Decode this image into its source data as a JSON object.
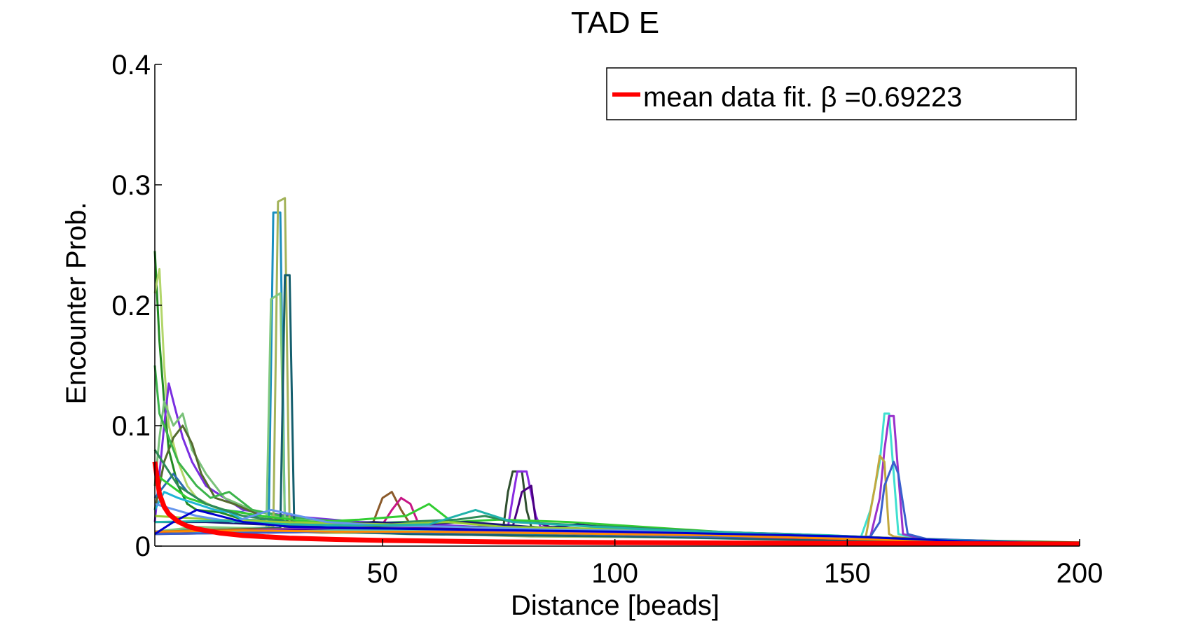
{
  "chart_data": {
    "type": "line",
    "title": "TAD E",
    "xlabel": "Distance [beads]",
    "ylabel": "Encounter Prob.",
    "xlim": [
      1,
      200
    ],
    "ylim": [
      0,
      0.4
    ],
    "xticks": [
      50,
      100,
      150,
      200
    ],
    "yticks": [
      0,
      0.1,
      0.2,
      0.3,
      0.4
    ],
    "xtick_labels": [
      "50",
      "100",
      "150",
      "200"
    ],
    "ytick_labels": [
      "0",
      "0.1",
      "0.2",
      "0.3",
      "0.4"
    ],
    "grid": false,
    "legend": {
      "placement": "top-right",
      "entries": [
        {
          "label": "mean data fit. β =0.69223",
          "color": "#ff0000"
        }
      ]
    },
    "fit": {
      "name": "mean data fit. β =0.69223",
      "color": "#ff0000",
      "beta": 0.69223,
      "x": [
        1,
        2,
        3,
        4,
        6,
        8,
        10,
        15,
        20,
        30,
        40,
        50,
        75,
        100,
        150,
        200
      ],
      "y": [
        0.07,
        0.0433,
        0.0327,
        0.0268,
        0.0203,
        0.0166,
        0.0143,
        0.0108,
        0.0088,
        0.0066,
        0.0055,
        0.0047,
        0.0035,
        0.0029,
        0.0022,
        0.0018
      ]
    },
    "series": [
      {
        "color": "#228b22",
        "x": [
          1,
          2,
          3,
          4,
          6,
          8,
          10,
          15,
          20,
          30,
          40,
          60,
          80,
          120,
          160,
          200
        ],
        "y": [
          0.245,
          0.17,
          0.12,
          0.08,
          0.05,
          0.035,
          0.03,
          0.028,
          0.022,
          0.02,
          0.018,
          0.015,
          0.012,
          0.01,
          0.006,
          0.003
        ]
      },
      {
        "color": "#b3d66b",
        "x": [
          1,
          2,
          3,
          4,
          6,
          8,
          10,
          15,
          20,
          30,
          40,
          60,
          80,
          120,
          160,
          200
        ],
        "y": [
          0.21,
          0.23,
          0.15,
          0.1,
          0.07,
          0.05,
          0.04,
          0.03,
          0.025,
          0.02,
          0.016,
          0.014,
          0.01,
          0.008,
          0.005,
          0.002
        ]
      },
      {
        "color": "#7a2ee0",
        "x": [
          1,
          2,
          3,
          4,
          5,
          7,
          9,
          12,
          16,
          20,
          30,
          45,
          60,
          90,
          130,
          170,
          200
        ],
        "y": [
          0.02,
          0.06,
          0.1,
          0.135,
          0.12,
          0.09,
          0.07,
          0.05,
          0.04,
          0.03,
          0.025,
          0.02,
          0.018,
          0.012,
          0.008,
          0.004,
          0.002
        ]
      },
      {
        "color": "#7ac27a",
        "x": [
          1,
          2,
          3,
          5,
          7,
          9,
          12,
          16,
          22,
          30,
          45,
          60,
          90,
          130,
          170,
          200
        ],
        "y": [
          0.05,
          0.09,
          0.12,
          0.1,
          0.11,
          0.08,
          0.06,
          0.04,
          0.03,
          0.022,
          0.018,
          0.015,
          0.011,
          0.007,
          0.004,
          0.002
        ]
      },
      {
        "color": "#556b2f",
        "x": [
          1,
          3,
          5,
          7,
          9,
          11,
          14,
          18,
          24,
          32,
          48,
          64,
          96,
          140,
          180,
          200
        ],
        "y": [
          0.03,
          0.07,
          0.09,
          0.1,
          0.085,
          0.06,
          0.04,
          0.035,
          0.025,
          0.02,
          0.017,
          0.013,
          0.01,
          0.006,
          0.003,
          0.002
        ]
      },
      {
        "color": "#3cb44b",
        "x": [
          1,
          2,
          4,
          6,
          8,
          10,
          13,
          17,
          22,
          30,
          42,
          58,
          85,
          125,
          165,
          200
        ],
        "y": [
          0.15,
          0.11,
          0.09,
          0.07,
          0.06,
          0.05,
          0.04,
          0.045,
          0.03,
          0.024,
          0.02,
          0.016,
          0.012,
          0.009,
          0.005,
          0.002
        ]
      },
      {
        "color": "#2b6cb0",
        "x": [
          1,
          3,
          5,
          8,
          12,
          16,
          20,
          26,
          34,
          44,
          60,
          80,
          110,
          145,
          175,
          200
        ],
        "y": [
          0.04,
          0.05,
          0.06,
          0.045,
          0.035,
          0.03,
          0.028,
          0.02,
          0.018,
          0.016,
          0.013,
          0.011,
          0.009,
          0.007,
          0.004,
          0.002
        ]
      },
      {
        "color": "#1fb5d6",
        "x": [
          1,
          3,
          6,
          10,
          14,
          17,
          20,
          25,
          32,
          42,
          58,
          76,
          105,
          140,
          172,
          200
        ],
        "y": [
          0.03,
          0.045,
          0.04,
          0.035,
          0.03,
          0.028,
          0.022,
          0.02,
          0.017,
          0.015,
          0.012,
          0.01,
          0.008,
          0.006,
          0.003,
          0.002
        ]
      },
      {
        "color": "#1a8fbf",
        "x": [
          1,
          10,
          20,
          25.5,
          26.5,
          28,
          29,
          31,
          36,
          45,
          60,
          80,
          120,
          160,
          200
        ],
        "y": [
          0.01,
          0.015,
          0.015,
          0.015,
          0.277,
          0.277,
          0.015,
          0.012,
          0.012,
          0.011,
          0.01,
          0.009,
          0.007,
          0.004,
          0.002
        ]
      },
      {
        "color": "#a3b35a",
        "x": [
          1,
          10,
          20,
          26.5,
          27.5,
          29,
          30,
          32,
          37,
          46,
          62,
          82,
          122,
          162,
          200
        ],
        "y": [
          0.01,
          0.014,
          0.014,
          0.016,
          0.286,
          0.289,
          0.015,
          0.012,
          0.011,
          0.011,
          0.01,
          0.008,
          0.007,
          0.004,
          0.002
        ]
      },
      {
        "color": "#7fc97f",
        "x": [
          1,
          10,
          20,
          25,
          26,
          28,
          29,
          33,
          40,
          55,
          75,
          100,
          140,
          180,
          200
        ],
        "y": [
          0.012,
          0.016,
          0.015,
          0.015,
          0.205,
          0.21,
          0.016,
          0.013,
          0.012,
          0.01,
          0.009,
          0.008,
          0.005,
          0.003,
          0.002
        ]
      },
      {
        "color": "#155f6e",
        "x": [
          1,
          10,
          20,
          28,
          29,
          30,
          31,
          34,
          41,
          56,
          76,
          102,
          142,
          182,
          200
        ],
        "y": [
          0.011,
          0.013,
          0.014,
          0.015,
          0.225,
          0.225,
          0.016,
          0.013,
          0.012,
          0.01,
          0.009,
          0.008,
          0.005,
          0.003,
          0.002
        ]
      },
      {
        "color": "#8b5a2b",
        "x": [
          1,
          20,
          40,
          48,
          50,
          52,
          54,
          56,
          62,
          70,
          90,
          120,
          160,
          200
        ],
        "y": [
          0.012,
          0.014,
          0.015,
          0.02,
          0.04,
          0.045,
          0.03,
          0.018,
          0.016,
          0.015,
          0.012,
          0.009,
          0.005,
          0.002
        ]
      },
      {
        "color": "#c71585",
        "x": [
          1,
          20,
          40,
          50,
          52,
          54,
          56,
          58,
          64,
          72,
          92,
          122,
          162,
          200
        ],
        "y": [
          0.011,
          0.013,
          0.014,
          0.018,
          0.03,
          0.04,
          0.035,
          0.016,
          0.015,
          0.014,
          0.011,
          0.008,
          0.005,
          0.002
        ]
      },
      {
        "color": "#2f4f2f",
        "x": [
          1,
          30,
          60,
          76,
          77,
          78,
          80,
          81,
          82,
          86,
          100,
          130,
          170,
          200
        ],
        "y": [
          0.01,
          0.014,
          0.016,
          0.016,
          0.045,
          0.062,
          0.062,
          0.03,
          0.016,
          0.015,
          0.012,
          0.008,
          0.004,
          0.002
        ]
      },
      {
        "color": "#8a2be2",
        "x": [
          1,
          30,
          60,
          77,
          78,
          79,
          81,
          83,
          84,
          88,
          102,
          132,
          172,
          200
        ],
        "y": [
          0.01,
          0.014,
          0.015,
          0.016,
          0.04,
          0.062,
          0.062,
          0.025,
          0.016,
          0.015,
          0.011,
          0.008,
          0.004,
          0.002
        ]
      },
      {
        "color": "#4b0082",
        "x": [
          1,
          30,
          62,
          78,
          79,
          80,
          82,
          83,
          86,
          95,
          110,
          140,
          175,
          200
        ],
        "y": [
          0.01,
          0.013,
          0.015,
          0.016,
          0.03,
          0.045,
          0.05,
          0.02,
          0.016,
          0.014,
          0.011,
          0.007,
          0.004,
          0.002
        ]
      },
      {
        "color": "#40e0d0",
        "x": [
          1,
          40,
          80,
          120,
          150,
          153,
          155,
          157,
          158,
          159,
          161,
          165,
          180,
          200
        ],
        "y": [
          0.01,
          0.013,
          0.012,
          0.009,
          0.007,
          0.008,
          0.03,
          0.07,
          0.11,
          0.11,
          0.01,
          0.006,
          0.004,
          0.002
        ]
      },
      {
        "color": "#9932cc",
        "x": [
          1,
          40,
          80,
          120,
          152,
          155,
          157,
          158,
          159,
          160,
          162,
          166,
          182,
          200
        ],
        "y": [
          0.01,
          0.012,
          0.012,
          0.009,
          0.007,
          0.008,
          0.04,
          0.08,
          0.108,
          0.108,
          0.01,
          0.006,
          0.004,
          0.002
        ]
      },
      {
        "color": "#c2a83e",
        "x": [
          1,
          40,
          80,
          120,
          151,
          154,
          156,
          157,
          158,
          159,
          160,
          164,
          180,
          200
        ],
        "y": [
          0.01,
          0.012,
          0.011,
          0.008,
          0.007,
          0.008,
          0.05,
          0.075,
          0.07,
          0.01,
          0.008,
          0.006,
          0.004,
          0.002
        ]
      },
      {
        "color": "#3a5fcd",
        "x": [
          1,
          40,
          80,
          120,
          152,
          155,
          157,
          158,
          160,
          161,
          163,
          167,
          183,
          200
        ],
        "y": [
          0.01,
          0.012,
          0.011,
          0.008,
          0.007,
          0.008,
          0.02,
          0.05,
          0.07,
          0.06,
          0.01,
          0.006,
          0.004,
          0.002
        ]
      },
      {
        "color": "#32cd32",
        "x": [
          1,
          8,
          16,
          24,
          35,
          45,
          55,
          60,
          65,
          75,
          90,
          110,
          130,
          150,
          175,
          200
        ],
        "y": [
          0.06,
          0.04,
          0.03,
          0.025,
          0.02,
          0.022,
          0.025,
          0.035,
          0.02,
          0.022,
          0.02,
          0.015,
          0.01,
          0.008,
          0.004,
          0.002
        ]
      },
      {
        "color": "#2e8b57",
        "x": [
          1,
          6,
          12,
          20,
          30,
          42,
          54,
          66,
          72,
          78,
          95,
          115,
          135,
          160,
          185,
          200
        ],
        "y": [
          0.08,
          0.05,
          0.035,
          0.025,
          0.02,
          0.018,
          0.02,
          0.022,
          0.025,
          0.02,
          0.017,
          0.013,
          0.01,
          0.006,
          0.003,
          0.002
        ]
      },
      {
        "color": "#191970",
        "x": [
          1,
          12,
          24,
          36,
          48,
          58,
          68,
          85,
          92,
          100,
          118,
          138,
          158,
          178,
          200
        ],
        "y": [
          0.02,
          0.02,
          0.018,
          0.017,
          0.02,
          0.018,
          0.02,
          0.015,
          0.018,
          0.014,
          0.012,
          0.01,
          0.007,
          0.004,
          0.002
        ]
      },
      {
        "color": "#9acd32",
        "x": [
          1,
          14,
          28,
          40,
          52,
          64,
          76,
          88,
          104,
          120,
          136,
          152,
          168,
          184,
          200
        ],
        "y": [
          0.025,
          0.022,
          0.02,
          0.019,
          0.018,
          0.02,
          0.016,
          0.015,
          0.014,
          0.012,
          0.01,
          0.008,
          0.005,
          0.003,
          0.002
        ]
      },
      {
        "color": "#6495ed",
        "x": [
          1,
          10,
          18,
          26,
          38,
          50,
          66,
          82,
          98,
          114,
          132,
          148,
          166,
          184,
          200
        ],
        "y": [
          0.035,
          0.025,
          0.02,
          0.03,
          0.02,
          0.017,
          0.016,
          0.014,
          0.013,
          0.012,
          0.01,
          0.008,
          0.005,
          0.003,
          0.002
        ]
      },
      {
        "color": "#20b2aa",
        "x": [
          1,
          15,
          30,
          45,
          60,
          70,
          78,
          96,
          112,
          128,
          146,
          162,
          180,
          200
        ],
        "y": [
          0.02,
          0.021,
          0.018,
          0.017,
          0.018,
          0.03,
          0.02,
          0.016,
          0.013,
          0.011,
          0.009,
          0.006,
          0.004,
          0.002
        ]
      },
      {
        "color": "#ff8c00",
        "x": [
          1,
          20,
          40,
          60,
          80,
          100,
          120,
          140,
          160,
          180,
          200
        ],
        "y": [
          0.012,
          0.013,
          0.012,
          0.012,
          0.011,
          0.01,
          0.009,
          0.007,
          0.005,
          0.003,
          0.002
        ]
      },
      {
        "color": "#0000cd",
        "x": [
          1,
          5,
          10,
          20,
          30,
          45,
          60,
          80,
          100,
          125,
          150,
          175,
          200
        ],
        "y": [
          0.01,
          0.02,
          0.03,
          0.02,
          0.016,
          0.015,
          0.014,
          0.013,
          0.012,
          0.01,
          0.008,
          0.004,
          0.002
        ]
      }
    ]
  }
}
